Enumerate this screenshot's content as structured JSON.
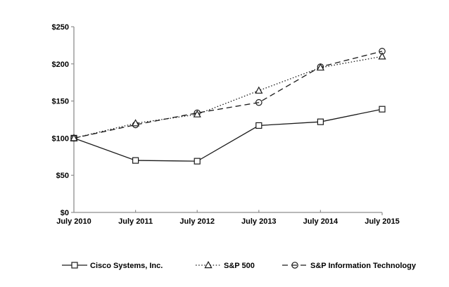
{
  "chart_data": {
    "type": "line",
    "title": "",
    "xlabel": "",
    "ylabel": "",
    "categories": [
      "July 2010",
      "July 2011",
      "July 2012",
      "July 2013",
      "July 2014",
      "July 2015"
    ],
    "series": [
      {
        "name": "Cisco Systems, Inc.",
        "marker": "square",
        "line_style": "solid",
        "values": [
          100,
          70,
          69,
          117,
          122,
          139
        ]
      },
      {
        "name": "S&P 500",
        "marker": "triangle",
        "line_style": "dotted",
        "values": [
          100,
          120,
          132,
          164,
          195,
          210
        ]
      },
      {
        "name": "S&P Information Technology",
        "marker": "circle",
        "line_style": "dashed",
        "values": [
          100,
          118,
          134,
          148,
          196,
          217
        ]
      }
    ],
    "y_ticks": [
      "$0",
      "$50",
      "$100",
      "$150",
      "$200",
      "$250"
    ],
    "y_tick_values": [
      0,
      50,
      100,
      150,
      200,
      250
    ],
    "ylim": [
      0,
      250
    ],
    "grid": false,
    "legend_position": "bottom",
    "colors": {
      "background": "#ffffff",
      "axis": "#8e8e8e",
      "line": "#1a1a1a",
      "text": "#000000",
      "marker_fill": "#ffffff"
    }
  }
}
